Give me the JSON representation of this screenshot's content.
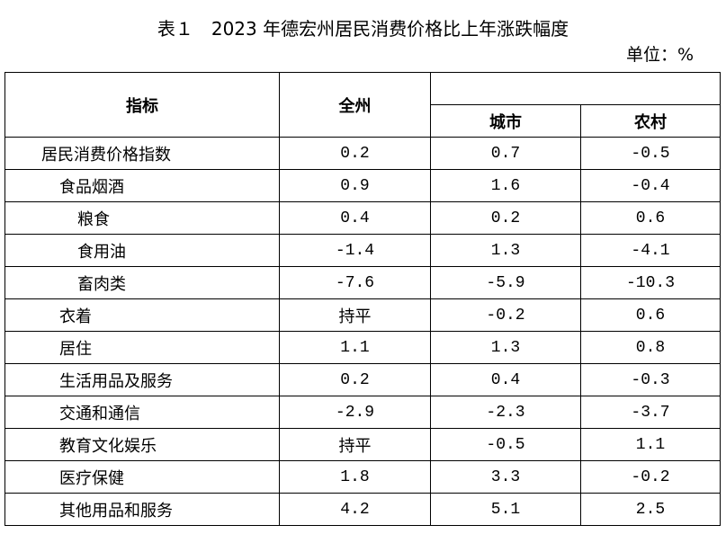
{
  "header": {
    "title": "表１　2023 年德宏州居民消费价格比上年涨跌幅度",
    "unit": "单位：%"
  },
  "table": {
    "columns": [
      "指标",
      "全州",
      "城市",
      "农村"
    ],
    "rows": [
      [
        "居民消费价格指数",
        "0.2",
        "0.7",
        "-0.5"
      ],
      [
        "食品烟酒",
        "0.9",
        "1.6",
        "-0.4"
      ],
      [
        "粮食",
        "0.4",
        "0.2",
        "0.6"
      ],
      [
        "食用油",
        "-1.4",
        "1.3",
        "-4.1"
      ],
      [
        "畜肉类",
        "-7.6",
        "-5.9",
        "-10.3"
      ],
      [
        "衣着",
        "持平",
        "-0.2",
        "0.6"
      ],
      [
        "居住",
        "1.1",
        "1.3",
        "0.8"
      ],
      [
        "生活用品及服务",
        "0.2",
        "0.4",
        "-0.3"
      ],
      [
        "交通和通信",
        "-2.9",
        "-2.3",
        "-3.7"
      ],
      [
        "教育文化娱乐",
        "持平",
        "-0.5",
        "1.1"
      ],
      [
        "医疗保健",
        "1.8",
        "3.3",
        "-0.2"
      ],
      [
        "其他用品和服务",
        "4.2",
        "5.1",
        "2.5"
      ]
    ]
  }
}
